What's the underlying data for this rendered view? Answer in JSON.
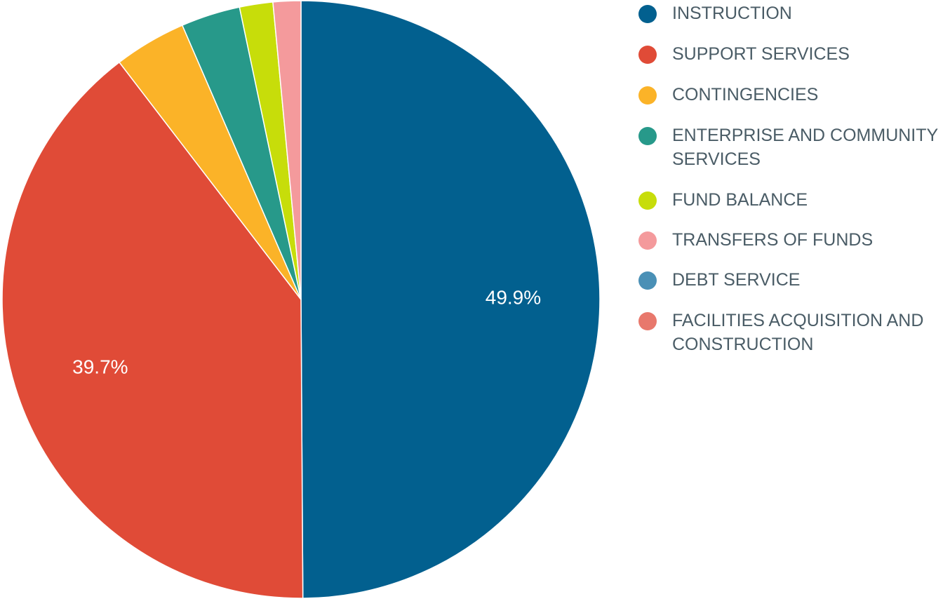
{
  "chart_data": {
    "type": "pie",
    "start_angle_deg": 0,
    "direction": "clockwise",
    "legend_position": "right",
    "slices": [
      {
        "name": "INSTRUCTION",
        "value": 49.9,
        "label": "49.9%",
        "color": "#02608f"
      },
      {
        "name": "SUPPORT SERVICES",
        "value": 39.7,
        "label": "39.7%",
        "color": "#e04b37"
      },
      {
        "name": "CONTINGENCIES",
        "value": 3.9,
        "label": "",
        "color": "#fbb328"
      },
      {
        "name": "ENTERPRISE AND COMMUNITY SERVICES",
        "value": 3.2,
        "label": "",
        "color": "#27998a"
      },
      {
        "name": "FUND BALANCE",
        "value": 1.8,
        "label": "",
        "color": "#c7dd0a"
      },
      {
        "name": "TRANSFERS OF FUNDS",
        "value": 1.5,
        "label": "",
        "color": "#f49a9c"
      },
      {
        "name": "DEBT SERVICE",
        "value": 0.0,
        "label": "",
        "color": "#4a90b6"
      },
      {
        "name": "FACILITIES ACQUISITION AND CONSTRUCTION",
        "value": 0.0,
        "label": "",
        "color": "#e8786c"
      }
    ]
  },
  "legend": {
    "items": [
      {
        "label": "INSTRUCTION",
        "color": "#02608f"
      },
      {
        "label": "SUPPORT SERVICES",
        "color": "#e04b37"
      },
      {
        "label": "CONTINGENCIES",
        "color": "#fbb328"
      },
      {
        "label": "ENTERPRISE AND COMMUNITY SERVICES",
        "color": "#27998a"
      },
      {
        "label": "FUND BALANCE",
        "color": "#c7dd0a"
      },
      {
        "label": "TRANSFERS OF FUNDS",
        "color": "#f49a9c"
      },
      {
        "label": "DEBT SERVICE",
        "color": "#4a90b6"
      },
      {
        "label": "FACILITIES ACQUISITION AND CONSTRUCTION",
        "color": "#e8786c"
      }
    ]
  }
}
